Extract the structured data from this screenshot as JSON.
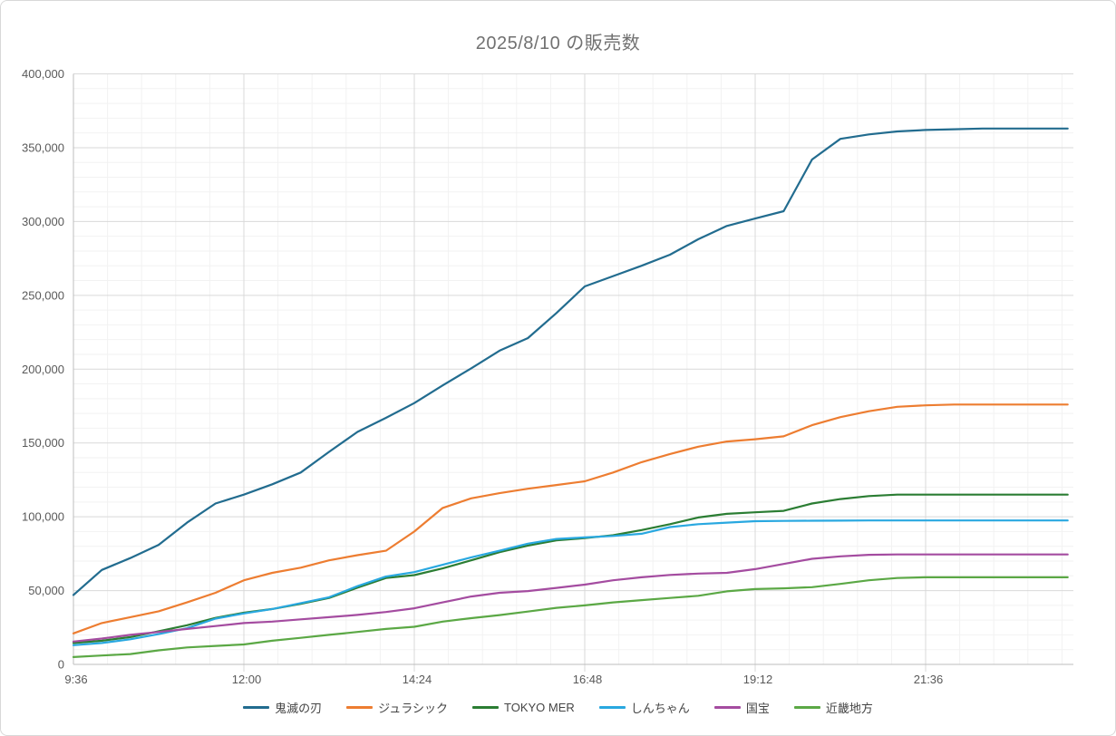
{
  "chart_data": {
    "type": "line",
    "title": "2025/8/10 の販売数",
    "legend_position": "bottom",
    "grid": true,
    "x_axis": {
      "tick_labels": [
        "9:36",
        "12:00",
        "14:24",
        "16:48",
        "19:12",
        "21:36"
      ],
      "tick_indices": [
        0,
        6,
        12,
        18,
        24,
        30
      ]
    },
    "y_axis": {
      "tick_labels": [
        "0",
        "50,000",
        "100,000",
        "150,000",
        "200,000",
        "250,000",
        "300,000",
        "350,000",
        "400,000"
      ],
      "tick_values": [
        0,
        50000,
        100000,
        150000,
        200000,
        250000,
        300000,
        350000,
        400000
      ],
      "ylim": [
        0,
        400000
      ],
      "minor_step": 10000
    },
    "categories": [
      "9:36",
      "10:00",
      "10:24",
      "10:48",
      "11:12",
      "11:36",
      "12:00",
      "12:24",
      "12:48",
      "13:12",
      "13:36",
      "14:00",
      "14:24",
      "14:48",
      "15:12",
      "15:36",
      "16:00",
      "16:24",
      "16:48",
      "17:12",
      "17:36",
      "18:00",
      "18:24",
      "18:48",
      "19:12",
      "19:36",
      "20:00",
      "20:24",
      "20:48",
      "21:12",
      "21:36",
      "22:00",
      "22:24",
      "22:48",
      "23:12",
      "23:36"
    ],
    "series": [
      {
        "name": "鬼滅の刃",
        "color": "#226C8F",
        "values": [
          47000,
          64000,
          72000,
          81000,
          96000,
          109000,
          115000,
          122000,
          130000,
          144000,
          157500,
          167000,
          177000,
          189000,
          200500,
          212500,
          221000,
          238000,
          256000,
          263000,
          270000,
          277500,
          288000,
          297000,
          302000,
          307000,
          342000,
          356000,
          359000,
          361000,
          362000,
          362500,
          363000,
          363000,
          363000,
          363000
        ]
      },
      {
        "name": "ジュラシック",
        "color": "#ED7D31",
        "values": [
          21000,
          28000,
          32000,
          36000,
          42000,
          48500,
          57000,
          62000,
          65500,
          70500,
          74000,
          77000,
          90000,
          106000,
          112500,
          116000,
          119000,
          121500,
          124000,
          130000,
          137000,
          142500,
          147500,
          151000,
          152500,
          154500,
          162000,
          167500,
          171500,
          174500,
          175500,
          176000,
          176000,
          176000,
          176000,
          176000
        ]
      },
      {
        "name": "TOKYO MER",
        "color": "#2B7D33",
        "values": [
          14500,
          16000,
          18500,
          22500,
          26500,
          31500,
          35000,
          37500,
          41000,
          45000,
          52000,
          58500,
          60500,
          65000,
          70500,
          76000,
          80500,
          84000,
          85500,
          87500,
          91000,
          95000,
          99500,
          102000,
          103000,
          104000,
          109000,
          112000,
          114000,
          115000,
          115000,
          115000,
          115000,
          115000,
          115000,
          115000
        ]
      },
      {
        "name": "しんちゃん",
        "color": "#29A8E0",
        "values": [
          13000,
          14500,
          17000,
          20500,
          24500,
          31000,
          34500,
          37500,
          41500,
          45500,
          53000,
          59500,
          62500,
          67500,
          72500,
          77000,
          81800,
          85000,
          86000,
          87000,
          88500,
          93000,
          95000,
          96000,
          97000,
          97200,
          97300,
          97400,
          97500,
          97500,
          97500,
          97500,
          97500,
          97500,
          97500,
          97500
        ]
      },
      {
        "name": "国宝",
        "color": "#A44CA0",
        "values": [
          15500,
          17500,
          20000,
          22000,
          24000,
          26000,
          28000,
          29000,
          30500,
          32000,
          33500,
          35500,
          38000,
          42000,
          46000,
          48500,
          49700,
          51800,
          54000,
          57000,
          59000,
          60600,
          61500,
          62000,
          64500,
          68000,
          71500,
          73200,
          74200,
          74500,
          74500,
          74500,
          74500,
          74500,
          74500,
          74500
        ]
      },
      {
        "name": "近畿地方",
        "color": "#5BA845",
        "values": [
          5000,
          6000,
          7000,
          9500,
          11500,
          12500,
          13500,
          16000,
          18000,
          20000,
          22000,
          24000,
          25500,
          29000,
          31300,
          33400,
          35800,
          38300,
          40000,
          42000,
          43500,
          45000,
          46500,
          49500,
          51000,
          51500,
          52300,
          54500,
          57000,
          58500,
          59000,
          59000,
          59000,
          59000,
          59000,
          59000
        ]
      }
    ],
    "style": {
      "grid_minor": "#F2F2F2",
      "grid_major": "#D9D9D9",
      "axis_line": "#BDBDBD",
      "title_color": "#717171",
      "tick_label_color": "#595959",
      "legend_text_color": "#444444",
      "background": "#FFFFFF"
    }
  }
}
